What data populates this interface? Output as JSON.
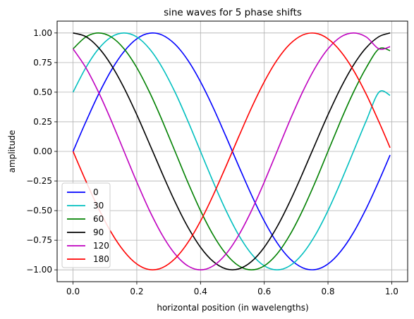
{
  "chart_data": {
    "type": "line",
    "title": "sine waves for 5 phase shifts",
    "xlabel": "horizontal position (in wavelengths)",
    "ylabel": "amplitude",
    "xlim": [
      -0.05,
      1.05
    ],
    "ylim": [
      -1.1,
      1.1
    ],
    "x_ticks": [
      0.0,
      0.2,
      0.4,
      0.6,
      0.8,
      1.0
    ],
    "x_tick_labels": [
      "0.0",
      "0.2",
      "0.4",
      "0.6",
      "0.8",
      "1.0"
    ],
    "y_ticks": [
      -1.0,
      -0.75,
      -0.5,
      -0.25,
      0.0,
      0.25,
      0.5,
      0.75,
      1.0
    ],
    "y_tick_labels": [
      "−1.00",
      "−0.75",
      "−0.50",
      "−0.25",
      "0.00",
      "0.25",
      "0.50",
      "0.75",
      "1.00"
    ],
    "grid": true,
    "legend_position": "lower-left",
    "x": [
      0.0,
      0.04,
      0.08,
      0.12,
      0.16,
      0.2,
      0.24,
      0.28,
      0.32,
      0.36,
      0.4,
      0.44,
      0.48,
      0.52,
      0.56,
      0.6,
      0.64,
      0.68,
      0.72,
      0.76,
      0.8,
      0.84,
      0.88,
      0.92,
      0.96,
      0.995
    ],
    "series": [
      {
        "name": "0",
        "color": "#0000ff",
        "values": [
          0.0,
          0.249,
          0.482,
          0.685,
          0.844,
          0.951,
          0.998,
          0.982,
          0.905,
          0.771,
          0.588,
          0.368,
          0.125,
          -0.125,
          -0.368,
          -0.588,
          -0.771,
          -0.905,
          -0.982,
          -0.998,
          -0.951,
          -0.844,
          -0.685,
          -0.482,
          -0.249,
          -0.031
        ]
      },
      {
        "name": "30",
        "color": "#00bfbf",
        "values": [
          0.5,
          0.707,
          0.866,
          0.966,
          1.0,
          0.966,
          0.866,
          0.707,
          0.5,
          0.259,
          0.0,
          -0.259,
          -0.5,
          -0.707,
          -0.866,
          -0.966,
          -1.0,
          -0.966,
          -0.866,
          -0.707,
          -0.5,
          -0.259,
          0.0,
          0.259,
          0.5,
          0.473
        ]
      },
      {
        "name": "60",
        "color": "#008000",
        "values": [
          0.866,
          0.966,
          1.0,
          0.966,
          0.866,
          0.707,
          0.5,
          0.259,
          0.0,
          -0.259,
          -0.5,
          -0.707,
          -0.866,
          -0.966,
          -1.0,
          -0.966,
          -0.866,
          -0.707,
          -0.5,
          -0.259,
          0.0,
          0.259,
          0.5,
          0.707,
          0.866,
          0.851
        ]
      },
      {
        "name": "90",
        "color": "#000000",
        "values": [
          1.0,
          0.969,
          0.876,
          0.729,
          0.536,
          0.309,
          0.063,
          -0.187,
          -0.426,
          -0.637,
          -0.809,
          -0.93,
          -0.992,
          -0.992,
          -0.93,
          -0.809,
          -0.637,
          -0.426,
          -0.187,
          0.063,
          0.309,
          0.536,
          0.729,
          0.876,
          0.969,
          1.0
        ]
      },
      {
        "name": "120",
        "color": "#bf00bf",
        "values": [
          0.866,
          0.707,
          0.5,
          0.259,
          0.0,
          -0.259,
          -0.5,
          -0.707,
          -0.866,
          -0.966,
          -1.0,
          -0.966,
          -0.866,
          -0.707,
          -0.5,
          -0.259,
          0.0,
          0.259,
          0.5,
          0.707,
          0.866,
          0.966,
          1.0,
          0.966,
          0.866,
          0.884
        ]
      },
      {
        "name": "180",
        "color": "#ff0000",
        "values": [
          0.0,
          -0.249,
          -0.482,
          -0.685,
          -0.844,
          -0.951,
          -0.998,
          -0.982,
          -0.905,
          -0.771,
          -0.588,
          -0.368,
          -0.125,
          0.125,
          0.368,
          0.588,
          0.771,
          0.905,
          0.982,
          0.998,
          0.951,
          0.844,
          0.685,
          0.482,
          0.249,
          0.031
        ]
      }
    ]
  }
}
